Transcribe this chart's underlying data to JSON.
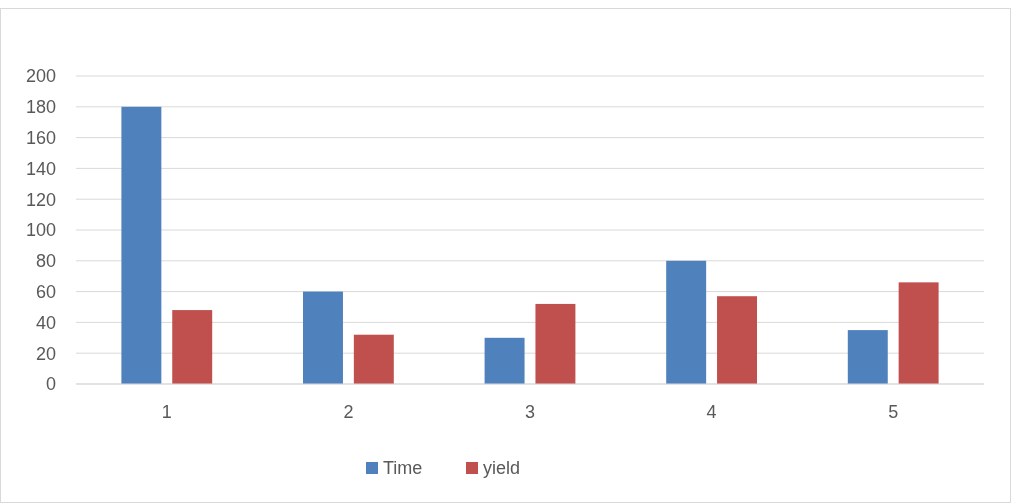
{
  "chart_data": {
    "type": "bar",
    "categories": [
      "1",
      "2",
      "3",
      "4",
      "5"
    ],
    "series": [
      {
        "name": "Time",
        "color": "#4f81bd",
        "values": [
          180,
          60,
          30,
          80,
          35
        ]
      },
      {
        "name": "yield",
        "color": "#c0504d",
        "values": [
          48,
          32,
          52,
          57,
          66
        ]
      }
    ],
    "ylim": [
      0,
      200
    ],
    "yticks": [
      0,
      20,
      40,
      60,
      80,
      100,
      120,
      140,
      160,
      180,
      200
    ],
    "grid": "y",
    "legend": "bottom"
  }
}
